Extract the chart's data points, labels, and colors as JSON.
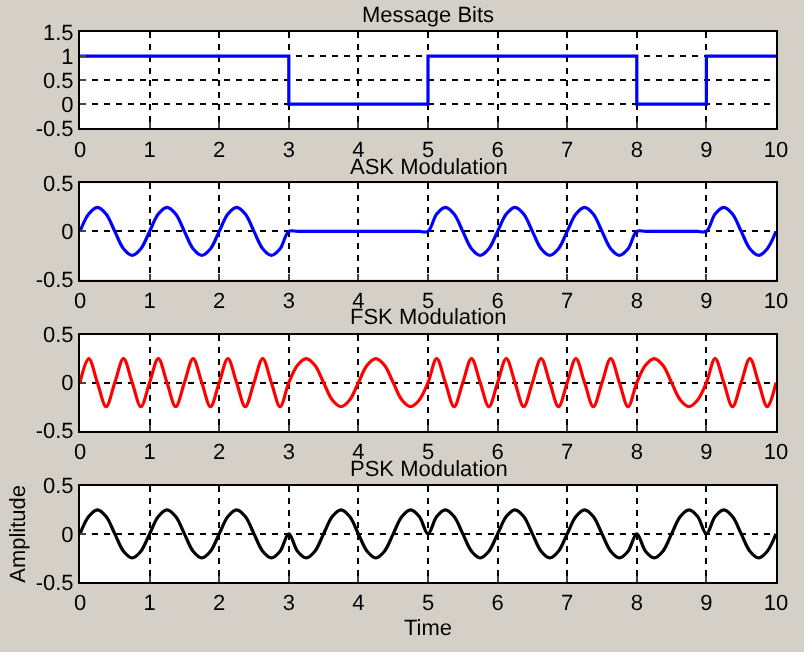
{
  "chart_data": [
    {
      "type": "step",
      "title": "Message Bits",
      "xlim": [
        0,
        10
      ],
      "xticks": [
        0,
        1,
        2,
        3,
        4,
        5,
        6,
        7,
        8,
        9,
        10
      ],
      "ylim": [
        -0.5,
        1.5
      ],
      "yticks": [
        -0.5,
        0,
        0.5,
        1,
        1.5
      ],
      "grid": true,
      "line_style": "solid",
      "series": [
        {
          "color": "#0000ff",
          "x": [
            0,
            1,
            2,
            3,
            4,
            5,
            6,
            7,
            8,
            9,
            10
          ],
          "values": [
            1,
            1,
            1,
            0,
            0,
            1,
            1,
            1,
            0,
            1,
            1
          ]
        }
      ]
    },
    {
      "type": "line",
      "title": "ASK Modulation",
      "xlim": [
        0,
        10
      ],
      "xticks": [
        0,
        1,
        2,
        3,
        4,
        5,
        6,
        7,
        8,
        9,
        10
      ],
      "ylim": [
        -0.5,
        0.5
      ],
      "yticks": [
        -0.5,
        0,
        0.5
      ],
      "grid": true,
      "line_style": "solid",
      "series": [
        {
          "color": "#0000ff",
          "x": [
            0,
            0.125,
            0.25,
            0.375,
            0.5,
            0.625,
            0.75,
            0.875,
            1,
            1.125,
            1.25,
            1.375,
            1.5,
            1.625,
            1.75,
            1.875,
            2,
            2.125,
            2.25,
            2.375,
            2.5,
            2.625,
            2.75,
            2.875,
            3,
            3.125,
            3.25,
            3.375,
            3.5,
            3.625,
            3.75,
            3.875,
            4,
            4.125,
            4.25,
            4.375,
            4.5,
            4.625,
            4.75,
            4.875,
            5,
            5.125,
            5.25,
            5.375,
            5.5,
            5.625,
            5.75,
            5.875,
            6,
            6.125,
            6.25,
            6.375,
            6.5,
            6.625,
            6.75,
            6.875,
            7,
            7.125,
            7.25,
            7.375,
            7.5,
            7.625,
            7.75,
            7.875,
            8,
            8.125,
            8.25,
            8.375,
            8.5,
            8.625,
            8.75,
            8.875,
            9,
            9.125,
            9.25,
            9.375,
            9.5,
            9.625,
            9.75,
            9.875,
            10
          ],
          "values": [
            0,
            0.18,
            0.25,
            0.18,
            0,
            -0.18,
            -0.25,
            -0.18,
            0,
            0.18,
            0.25,
            0.18,
            0,
            -0.18,
            -0.25,
            -0.18,
            0,
            0.18,
            0.25,
            0.18,
            0,
            -0.18,
            -0.25,
            -0.18,
            0,
            0,
            0,
            0,
            0,
            0,
            0,
            0,
            0,
            0,
            0,
            0,
            0,
            0,
            0,
            0,
            0,
            0.18,
            0.25,
            0.18,
            0,
            -0.18,
            -0.25,
            -0.18,
            0,
            0.18,
            0.25,
            0.18,
            0,
            -0.18,
            -0.25,
            -0.18,
            0,
            0.18,
            0.25,
            0.18,
            0,
            -0.18,
            -0.25,
            -0.18,
            0,
            0,
            0,
            0,
            0,
            0,
            0,
            0,
            0,
            0.18,
            0.25,
            0.18,
            0,
            -0.18,
            -0.25,
            -0.18,
            0
          ]
        }
      ]
    },
    {
      "type": "line",
      "title": "FSK Modulation",
      "xlim": [
        0,
        10
      ],
      "xticks": [
        0,
        1,
        2,
        3,
        4,
        5,
        6,
        7,
        8,
        9,
        10
      ],
      "ylim": [
        -0.5,
        0.5
      ],
      "yticks": [
        -0.5,
        0,
        0.5
      ],
      "grid": true,
      "line_style": "solid",
      "series": [
        {
          "color": "#ff0000",
          "x": [
            0,
            0.125,
            0.25,
            0.375,
            0.5,
            0.625,
            0.75,
            0.875,
            1,
            1.125,
            1.25,
            1.375,
            1.5,
            1.625,
            1.75,
            1.875,
            2,
            2.125,
            2.25,
            2.375,
            2.5,
            2.625,
            2.75,
            2.875,
            3,
            3.125,
            3.25,
            3.375,
            3.5,
            3.625,
            3.75,
            3.875,
            4,
            4.125,
            4.25,
            4.375,
            4.5,
            4.625,
            4.75,
            4.875,
            5,
            5.125,
            5.25,
            5.375,
            5.5,
            5.625,
            5.75,
            5.875,
            6,
            6.125,
            6.25,
            6.375,
            6.5,
            6.625,
            6.75,
            6.875,
            7,
            7.125,
            7.25,
            7.375,
            7.5,
            7.625,
            7.75,
            7.875,
            8,
            8.125,
            8.25,
            8.375,
            8.5,
            8.625,
            8.75,
            8.875,
            9,
            9.125,
            9.25,
            9.375,
            9.5,
            9.625,
            9.75,
            9.875,
            10
          ],
          "values": [
            0,
            0.25,
            0,
            -0.25,
            0,
            0.25,
            0,
            -0.25,
            0,
            0.25,
            0,
            -0.25,
            0,
            0.25,
            0,
            -0.25,
            0,
            0.25,
            0,
            -0.25,
            0,
            0.25,
            0,
            -0.25,
            0,
            0.18,
            0.25,
            0.18,
            0,
            -0.18,
            -0.25,
            -0.18,
            0,
            0.18,
            0.25,
            0.18,
            0,
            -0.18,
            -0.25,
            -0.18,
            0,
            0.25,
            0,
            -0.25,
            0,
            0.25,
            0,
            -0.25,
            0,
            0.25,
            0,
            -0.25,
            0,
            0.25,
            0,
            -0.25,
            0,
            0.25,
            0,
            -0.25,
            0,
            0.25,
            0,
            -0.25,
            0,
            0.18,
            0.25,
            0.18,
            0,
            -0.18,
            -0.25,
            -0.18,
            0,
            0.25,
            0,
            -0.25,
            0,
            0.25,
            0,
            -0.25,
            0
          ]
        }
      ]
    },
    {
      "type": "line",
      "title": "PSK Modulation",
      "xlabel": "Time",
      "ylabel": "Amplitude",
      "xlim": [
        0,
        10
      ],
      "xticks": [
        0,
        1,
        2,
        3,
        4,
        5,
        6,
        7,
        8,
        9,
        10
      ],
      "ylim": [
        -0.5,
        0.5
      ],
      "yticks": [
        -0.5,
        0,
        0.5
      ],
      "grid": true,
      "line_style": "solid",
      "series": [
        {
          "color": "#000000",
          "x": [
            0,
            0.125,
            0.25,
            0.375,
            0.5,
            0.625,
            0.75,
            0.875,
            1,
            1.125,
            1.25,
            1.375,
            1.5,
            1.625,
            1.75,
            1.875,
            2,
            2.125,
            2.25,
            2.375,
            2.5,
            2.625,
            2.75,
            2.875,
            3,
            3.125,
            3.25,
            3.375,
            3.5,
            3.625,
            3.75,
            3.875,
            4,
            4.125,
            4.25,
            4.375,
            4.5,
            4.625,
            4.75,
            4.875,
            5,
            5.125,
            5.25,
            5.375,
            5.5,
            5.625,
            5.75,
            5.875,
            6,
            6.125,
            6.25,
            6.375,
            6.5,
            6.625,
            6.75,
            6.875,
            7,
            7.125,
            7.25,
            7.375,
            7.5,
            7.625,
            7.75,
            7.875,
            8,
            8.125,
            8.25,
            8.375,
            8.5,
            8.625,
            8.75,
            8.875,
            9,
            9.125,
            9.25,
            9.375,
            9.5,
            9.625,
            9.75,
            9.875,
            10
          ],
          "values": [
            0,
            0.18,
            0.25,
            0.18,
            0,
            -0.18,
            -0.25,
            -0.18,
            0,
            0.18,
            0.25,
            0.18,
            0,
            -0.18,
            -0.25,
            -0.18,
            0,
            0.18,
            0.25,
            0.18,
            0,
            -0.18,
            -0.25,
            -0.18,
            0,
            -0.18,
            -0.25,
            -0.18,
            0,
            0.18,
            0.25,
            0.18,
            0,
            -0.18,
            -0.25,
            -0.18,
            0,
            0.18,
            0.25,
            0.18,
            0,
            0.18,
            0.25,
            0.18,
            0,
            -0.18,
            -0.25,
            -0.18,
            0,
            0.18,
            0.25,
            0.18,
            0,
            -0.18,
            -0.25,
            -0.18,
            0,
            0.18,
            0.25,
            0.18,
            0,
            -0.18,
            -0.25,
            -0.18,
            0,
            -0.18,
            -0.25,
            -0.18,
            0,
            0.18,
            0.25,
            0.18,
            0,
            0.18,
            0.25,
            0.18,
            0,
            -0.18,
            -0.25,
            -0.18,
            0
          ]
        }
      ]
    }
  ]
}
